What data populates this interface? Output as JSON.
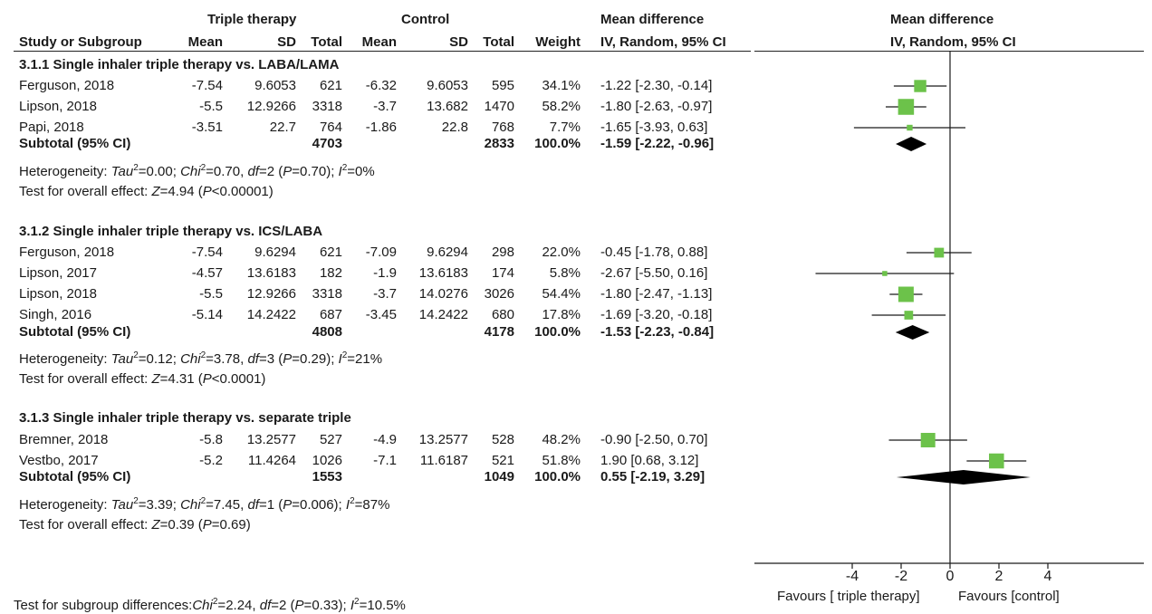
{
  "header": {
    "group_triple": "Triple therapy",
    "group_control": "Control",
    "md_left_1": "Mean difference",
    "md_left_2": "IV, Random, 95% CI",
    "md_right_1": "Mean difference",
    "md_right_2": "IV, Random, 95% CI",
    "col_study": "Study or Subgroup",
    "col_mean": "Mean",
    "col_sd": "SD",
    "col_total": "Total",
    "col_weight": "Weight"
  },
  "chart_data": {
    "type": "forest",
    "x_axis": {
      "ticks": [
        "-4",
        "-2",
        "0",
        "2",
        "4"
      ],
      "range": [
        -7.6,
        7.6
      ]
    },
    "favours_left": "Favours [ triple therapy]",
    "favours_right": "Favours [control]",
    "test_subgroup": {
      "prefix": "Test for subgroup differences:",
      "chi2": "2.24",
      "df": "2",
      "p": "0.33",
      "i2": "10.5%"
    },
    "subgroups": [
      {
        "title": "3.1.1 Single inhaler triple therapy vs. LABA/LAMA",
        "studies": [
          {
            "study": "Ferguson, 2018",
            "t_mean": "-7.54",
            "t_sd": "9.6053",
            "t_total": "621",
            "c_mean": "-6.32",
            "c_sd": "9.6053",
            "c_total": "595",
            "weight": "34.1%",
            "ci_text": "-1.22 [-2.30, -0.14]",
            "md": -1.22,
            "lo": -2.3,
            "hi": -0.14,
            "w": 34.1
          },
          {
            "study": "Lipson, 2018",
            "t_mean": "-5.5",
            "t_sd": "12.9266",
            "t_total": "3318",
            "c_mean": "-3.7",
            "c_sd": "13.682",
            "c_total": "1470",
            "weight": "58.2%",
            "ci_text": "-1.80 [-2.63, -0.97]",
            "md": -1.8,
            "lo": -2.63,
            "hi": -0.97,
            "w": 58.2
          },
          {
            "study": "Papi, 2018",
            "t_mean": "-3.51",
            "t_sd": "22.7",
            "t_total": "764",
            "c_mean": "-1.86",
            "c_sd": "22.8",
            "c_total": "768",
            "weight": "7.7%",
            "ci_text": "-1.65 [-3.93, 0.63]",
            "md": -1.65,
            "lo": -3.93,
            "hi": 0.63,
            "w": 7.7
          }
        ],
        "subtotal": {
          "label": "Subtotal (95% CI)",
          "t_total": "4703",
          "c_total": "2833",
          "weight": "100.0%",
          "ci_text": "-1.59 [-2.22, -0.96]",
          "md": -1.59,
          "lo": -2.22,
          "hi": -0.96
        },
        "heterogeneity": {
          "tau2": "0.00",
          "chi2": "0.70",
          "df": "2",
          "p": "0.70",
          "i2": "0%"
        },
        "overall": {
          "z": "4.94",
          "p_sign": "<",
          "p": "0.00001"
        }
      },
      {
        "title": "3.1.2 Single inhaler triple therapy vs. ICS/LABA",
        "studies": [
          {
            "study": "Ferguson, 2018",
            "t_mean": "-7.54",
            "t_sd": "9.6294",
            "t_total": "621",
            "c_mean": "-7.09",
            "c_sd": "9.6294",
            "c_total": "298",
            "weight": "22.0%",
            "ci_text": "-0.45 [-1.78, 0.88]",
            "md": -0.45,
            "lo": -1.78,
            "hi": 0.88,
            "w": 22.0
          },
          {
            "study": "Lipson, 2017",
            "t_mean": "-4.57",
            "t_sd": "13.6183",
            "t_total": "182",
            "c_mean": "-1.9",
            "c_sd": "13.6183",
            "c_total": "174",
            "weight": "5.8%",
            "ci_text": "-2.67 [-5.50, 0.16]",
            "md": -2.67,
            "lo": -5.5,
            "hi": 0.16,
            "w": 5.8
          },
          {
            "study": "Lipson, 2018",
            "t_mean": "-5.5",
            "t_sd": "12.9266",
            "t_total": "3318",
            "c_mean": "-3.7",
            "c_sd": "14.0276",
            "c_total": "3026",
            "weight": "54.4%",
            "ci_text": "-1.80 [-2.47, -1.13]",
            "md": -1.8,
            "lo": -2.47,
            "hi": -1.13,
            "w": 54.4
          },
          {
            "study": "Singh, 2016",
            "t_mean": "-5.14",
            "t_sd": "14.2422",
            "t_total": "687",
            "c_mean": "-3.45",
            "c_sd": "14.2422",
            "c_total": "680",
            "weight": "17.8%",
            "ci_text": "-1.69 [-3.20, -0.18]",
            "md": -1.69,
            "lo": -3.2,
            "hi": -0.18,
            "w": 17.8
          }
        ],
        "subtotal": {
          "label": "Subtotal (95% CI)",
          "t_total": "4808",
          "c_total": "4178",
          "weight": "100.0%",
          "ci_text": "-1.53 [-2.23, -0.84]",
          "md": -1.53,
          "lo": -2.23,
          "hi": -0.84
        },
        "heterogeneity": {
          "tau2": "0.12",
          "chi2": "3.78",
          "df": "3",
          "p": "0.29",
          "i2": "21%"
        },
        "overall": {
          "z": "4.31",
          "p_sign": "<",
          "p": "0.0001"
        }
      },
      {
        "title": "3.1.3 Single inhaler triple therapy vs. separate  triple",
        "studies": [
          {
            "study": "Bremner, 2018",
            "t_mean": "-5.8",
            "t_sd": "13.2577",
            "t_total": "527",
            "c_mean": "-4.9",
            "c_sd": "13.2577",
            "c_total": "528",
            "weight": "48.2%",
            "ci_text": "-0.90 [-2.50, 0.70]",
            "md": -0.9,
            "lo": -2.5,
            "hi": 0.7,
            "w": 48.2
          },
          {
            "study": "Vestbo, 2017",
            "t_mean": "-5.2",
            "t_sd": "11.4264",
            "t_total": "1026",
            "c_mean": "-7.1",
            "c_sd": "11.6187",
            "c_total": "521",
            "weight": "51.8%",
            "ci_text": "1.90 [0.68, 3.12]",
            "md": 1.9,
            "lo": 0.68,
            "hi": 3.12,
            "w": 51.8
          }
        ],
        "subtotal": {
          "label": "Subtotal (95% CI)",
          "t_total": "1553",
          "c_total": "1049",
          "weight": "100.0%",
          "ci_text": "0.55 [-2.19, 3.29]",
          "md": 0.55,
          "lo": -2.19,
          "hi": 3.29
        },
        "heterogeneity": {
          "tau2": "3.39",
          "chi2": "7.45",
          "df": "1",
          "p": "0.006",
          "i2": "87%"
        },
        "overall": {
          "z": "0.39",
          "p_sign": "=",
          "p": "0.69"
        }
      }
    ]
  },
  "colors": {
    "marker": "#6cc24a",
    "diamond": "#000000",
    "line": "#1a1a1a"
  }
}
